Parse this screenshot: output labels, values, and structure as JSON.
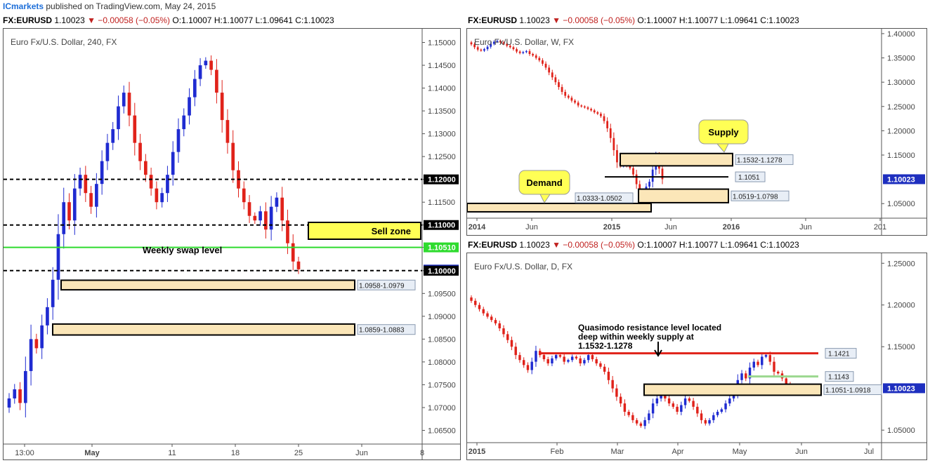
{
  "header": {
    "brand": "ICmarkets",
    "published": "published on TradingView.com, May 24, 2015"
  },
  "ohlc": {
    "symbol": "FX:EURUSD",
    "price": "1.10023",
    "change": "▼ −0.00058 (−0.05%)",
    "o_label": "O:",
    "o": "1.10007",
    "h_label": "H:",
    "h": "1.10077",
    "l_label": "L:",
    "l": "1.09641",
    "c_label": "C:",
    "c": "1.10023"
  },
  "colors": {
    "up": "#1f2bd1",
    "down": "#e0221a",
    "zone_fill": "#fbe6b8",
    "green_line": "#2edb2e",
    "red_line": "#e0221a",
    "light_green_line": "#9bd88f",
    "callout_fill": "#ffff55",
    "price_badge": "#1e2fbf"
  },
  "chart_data": [
    {
      "type": "candlestick",
      "title": "Euro Fx/U.S. Dollar, 240, FX",
      "y_ticks": [
        "1.15000",
        "1.14500",
        "1.14000",
        "1.13500",
        "1.13000",
        "1.12500",
        "1.12000",
        "1.11500",
        "1.11000",
        "1.10510",
        "1.10023",
        "1.10000",
        "1.09500",
        "1.09000",
        "1.08500",
        "1.08000",
        "1.07500",
        "1.07000",
        "1.06500"
      ],
      "x_ticks": [
        "13:00",
        "May",
        "11",
        "18",
        "25",
        "Jun",
        "8"
      ],
      "ylim": [
        1.062,
        1.153
      ],
      "levels": [
        {
          "kind": "dashed",
          "value": 1.12,
          "label": "1.12000"
        },
        {
          "kind": "dashed",
          "value": 1.11,
          "label": "1.11000"
        },
        {
          "kind": "green",
          "value": 1.1051,
          "label": "1.10510"
        },
        {
          "kind": "dashed",
          "value": 1.1,
          "label": "1.10000"
        }
      ],
      "zones": [
        {
          "low": 1.0958,
          "high": 1.0979,
          "label": "1.0958-1.0979"
        },
        {
          "low": 1.0859,
          "high": 1.0883,
          "label": "1.0859-1.0883"
        }
      ],
      "annotations": [
        "Sell zone",
        "Weekly swap level"
      ],
      "last_price": "1.10023",
      "closes": [
        1.072,
        1.074,
        1.071,
        1.078,
        1.085,
        1.083,
        1.088,
        1.092,
        1.098,
        1.108,
        1.115,
        1.111,
        1.118,
        1.121,
        1.117,
        1.114,
        1.119,
        1.124,
        1.128,
        1.131,
        1.136,
        1.139,
        1.134,
        1.128,
        1.124,
        1.121,
        1.118,
        1.115,
        1.117,
        1.121,
        1.126,
        1.131,
        1.134,
        1.138,
        1.142,
        1.145,
        1.146,
        1.144,
        1.139,
        1.133,
        1.128,
        1.122,
        1.118,
        1.115,
        1.112,
        1.111,
        1.113,
        1.109,
        1.114,
        1.116,
        1.111,
        1.106,
        1.102,
        1.1003
      ]
    },
    {
      "type": "candlestick",
      "title": "Euro Fx/U.S. Dollar, W, FX",
      "y_ticks": [
        "1.40000",
        "1.35000",
        "1.30000",
        "1.25000",
        "1.20000",
        "1.15000",
        "1.10023",
        "1.05000"
      ],
      "x_ticks": [
        "2014",
        "Jun",
        "2015",
        "Jun",
        "2016",
        "Jun",
        "201"
      ],
      "ylim": [
        1.02,
        1.41
      ],
      "zones": [
        {
          "low": 1.1278,
          "high": 1.1532,
          "label": "1.1532-1.1278"
        },
        {
          "low": 1.0519,
          "high": 1.0798,
          "label": "1.0519-1.0798"
        },
        {
          "low": 1.0333,
          "high": 1.0502,
          "label": "1.0333-1.0502"
        }
      ],
      "levels": [
        {
          "kind": "solid",
          "value": 1.1051,
          "label": "1.1051"
        }
      ],
      "annotations": [
        "Supply",
        "Demand"
      ],
      "last_price": "1.10023",
      "closes": [
        1.378,
        1.372,
        1.367,
        1.365,
        1.368,
        1.373,
        1.379,
        1.383,
        1.385,
        1.382,
        1.379,
        1.375,
        1.372,
        1.368,
        1.363,
        1.36,
        1.362,
        1.364,
        1.358,
        1.355,
        1.35,
        1.345,
        1.338,
        1.33,
        1.32,
        1.31,
        1.3,
        1.29,
        1.28,
        1.272,
        1.268,
        1.262,
        1.258,
        1.252,
        1.25,
        1.248,
        1.245,
        1.242,
        1.238,
        1.235,
        1.23,
        1.22,
        1.205,
        1.185,
        1.16,
        1.135,
        1.128,
        1.133,
        1.128,
        1.123,
        1.11,
        1.09,
        1.075,
        1.072,
        1.085,
        1.095,
        1.12,
        1.145,
        1.122,
        1.1003
      ]
    },
    {
      "type": "candlestick",
      "title": "Euro Fx/U.S. Dollar, D, FX",
      "y_ticks": [
        "1.25000",
        "1.20000",
        "1.15000",
        "1.10023",
        "1.05000"
      ],
      "x_ticks": [
        "2015",
        "Feb",
        "Mar",
        "Apr",
        "May",
        "Jun",
        "Jul"
      ],
      "ylim": [
        1.035,
        1.262
      ],
      "levels": [
        {
          "kind": "red",
          "value": 1.1421,
          "label": "1.1421"
        },
        {
          "kind": "lightgreen",
          "value": 1.1143,
          "label": "1.1143"
        }
      ],
      "zones": [
        {
          "low": 1.0918,
          "high": 1.1051,
          "label": "1.1051-1.0918"
        }
      ],
      "annotations": [
        "Quasimodo resistance level located",
        "deep within weekly supply at",
        "1.1532-1.1278"
      ],
      "last_price": "1.10023",
      "closes": [
        1.205,
        1.2,
        1.195,
        1.19,
        1.186,
        1.182,
        1.178,
        1.172,
        1.165,
        1.158,
        1.15,
        1.14,
        1.134,
        1.128,
        1.122,
        1.132,
        1.145,
        1.14,
        1.135,
        1.13,
        1.136,
        1.14,
        1.138,
        1.132,
        1.134,
        1.138,
        1.136,
        1.13,
        1.134,
        1.14,
        1.135,
        1.13,
        1.126,
        1.12,
        1.11,
        1.1,
        1.09,
        1.082,
        1.072,
        1.068,
        1.062,
        1.058,
        1.055,
        1.062,
        1.07,
        1.082,
        1.088,
        1.095,
        1.088,
        1.082,
        1.078,
        1.072,
        1.08,
        1.088,
        1.085,
        1.078,
        1.07,
        1.062,
        1.058,
        1.062,
        1.068,
        1.072,
        1.075,
        1.082,
        1.088,
        1.095,
        1.11,
        1.118,
        1.112,
        1.125,
        1.132,
        1.128,
        1.138,
        1.14,
        1.132,
        1.12,
        1.118,
        1.112,
        1.105,
        1.1003
      ]
    }
  ]
}
